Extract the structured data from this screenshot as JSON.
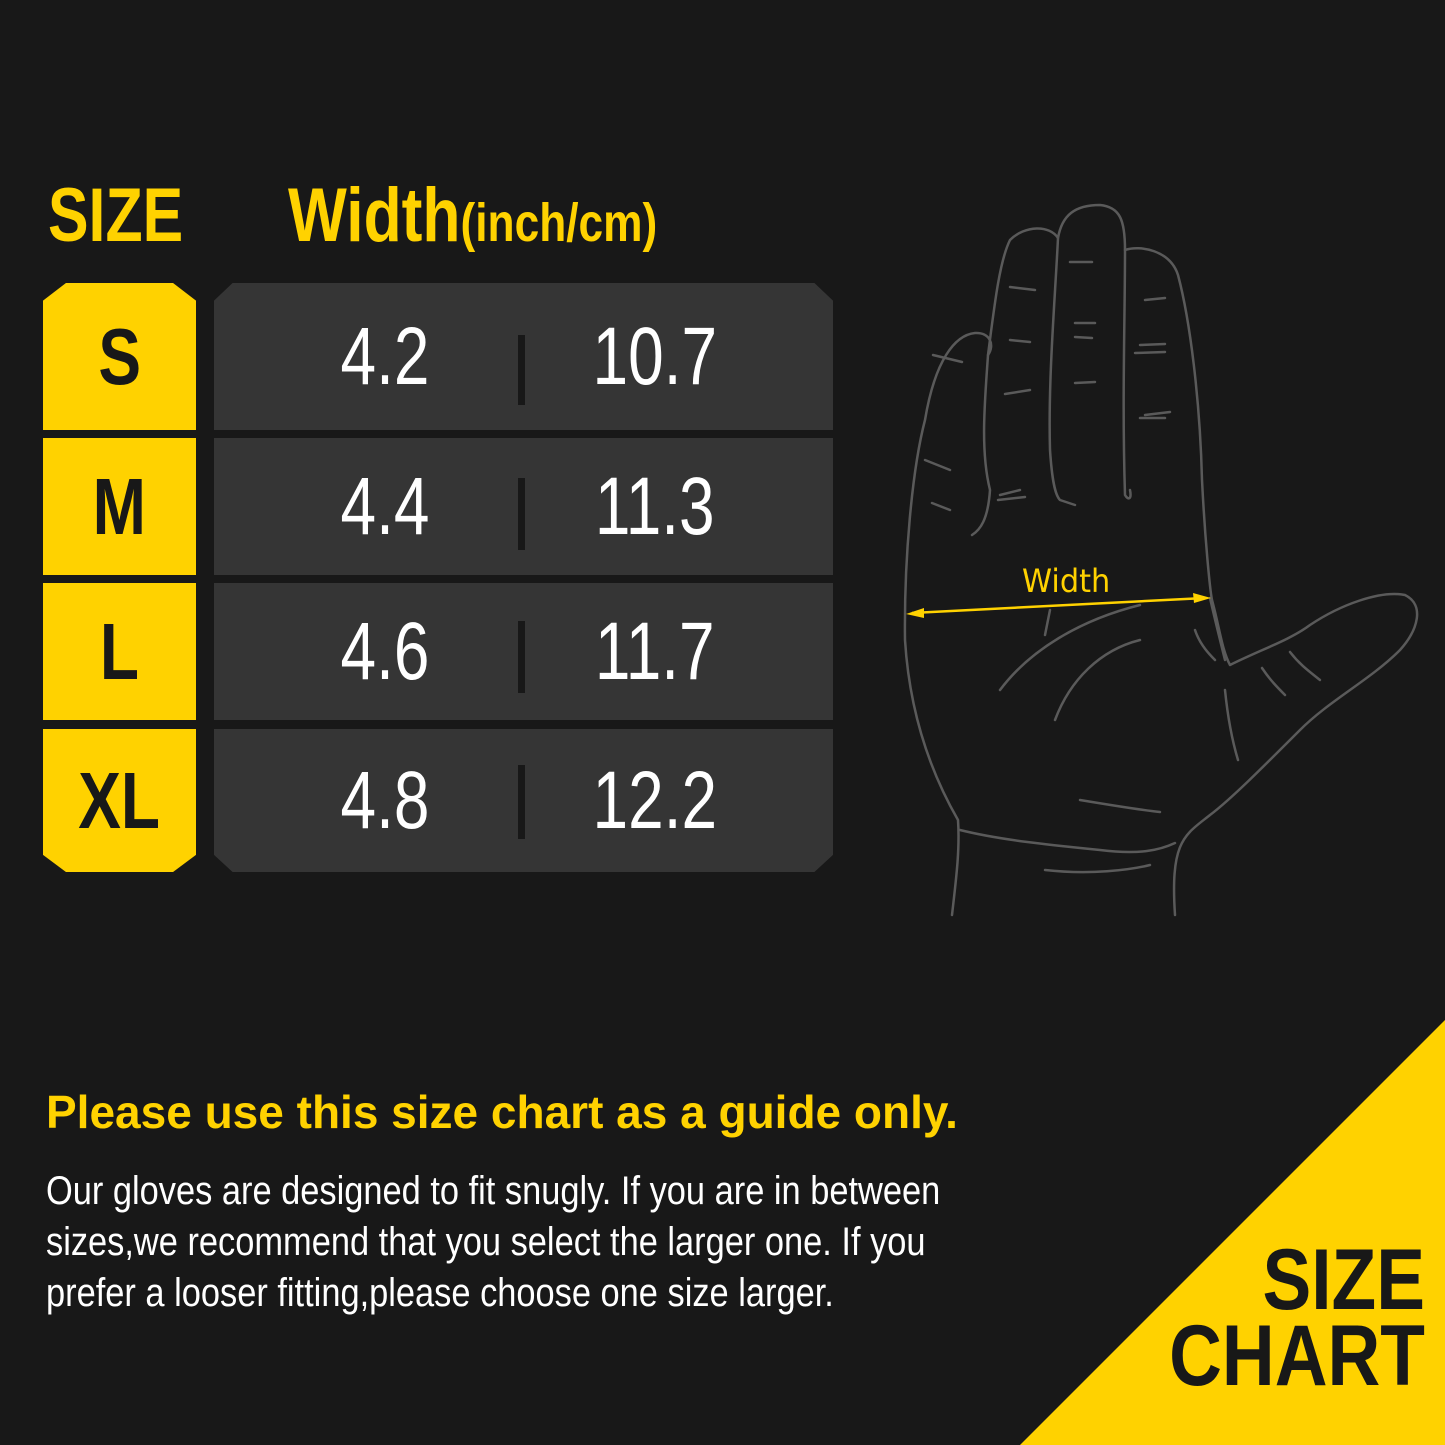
{
  "colors": {
    "background": "#181818",
    "accent": "#FFD200",
    "row": "#353535",
    "text": "#FFFFFF",
    "outline": "#5a5a5a"
  },
  "header": {
    "size_label": "SIZE",
    "width_label": "Width",
    "unit_label": "(inch/cm)"
  },
  "rows": [
    {
      "size": "S",
      "inch": "4.2",
      "cm": "10.7"
    },
    {
      "size": "M",
      "inch": "4.4",
      "cm": "11.3"
    },
    {
      "size": "L",
      "inch": "4.6",
      "cm": "11.7"
    },
    {
      "size": "XL",
      "inch": "4.8",
      "cm": "12.2"
    }
  ],
  "hand": {
    "icon": "hand-outline-icon",
    "measure_label": "Width"
  },
  "note": {
    "headline": "Please use this size chart as a guide only.",
    "lines": [
      "Our gloves are designed to fit snugly. If you are in between",
      "sizes,we recommend that you select the larger one. If you",
      "prefer a looser fitting,please choose one size larger."
    ]
  },
  "corner": {
    "line1": "SIZE",
    "line2": "CHART"
  }
}
